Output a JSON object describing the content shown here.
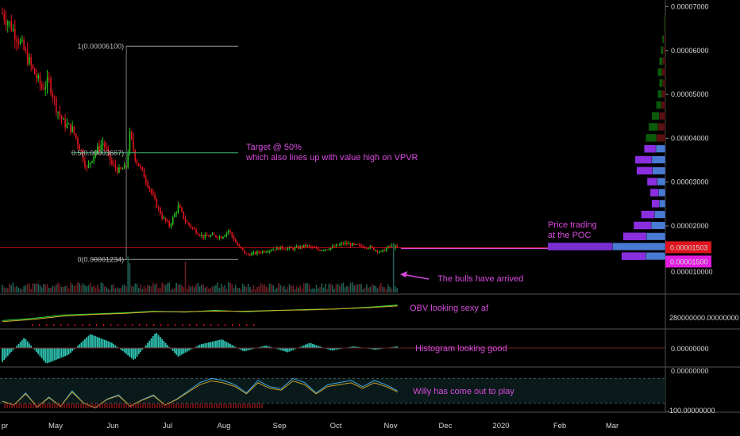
{
  "chart_data": [
    {
      "type": "candlestick",
      "panel": "price",
      "title": "",
      "x_ticks": [
        "pr",
        "May",
        "Jun",
        "Jul",
        "Aug",
        "Sep",
        "Oct",
        "Nov",
        "Dec",
        "2020",
        "Feb",
        "Mar"
      ],
      "y_ticks": [
        "0.00007000",
        "0.00006000",
        "0.00005000",
        "0.00004000",
        "0.00003000",
        "0.00002000"
      ],
      "ylim": [
        9.5e-06,
        7.1e-05
      ],
      "close_path": [
        [
          "2019-04-01",
          6.85e-05
        ],
        [
          "2019-04-06",
          6.55e-05
        ],
        [
          "2019-04-12",
          6.1e-05
        ],
        [
          "2019-04-18",
          5.55e-05
        ],
        [
          "2019-04-23",
          5.15e-05
        ],
        [
          "2019-04-27",
          5.3e-05
        ],
        [
          "2019-05-01",
          4.7e-05
        ],
        [
          "2019-05-05",
          4.35e-05
        ],
        [
          "2019-05-10",
          4.2e-05
        ],
        [
          "2019-05-14",
          3.8e-05
        ],
        [
          "2019-05-18",
          3.3e-05
        ],
        [
          "2019-05-22",
          3.65e-05
        ],
        [
          "2019-05-27",
          3.9e-05
        ],
        [
          "2019-06-01",
          3.4e-05
        ],
        [
          "2019-06-05",
          3.25e-05
        ],
        [
          "2019-06-09",
          3.35e-05
        ],
        [
          "2019-06-11",
          4.1e-05
        ],
        [
          "2019-06-14",
          3.55e-05
        ],
        [
          "2019-06-20",
          3.05e-05
        ],
        [
          "2019-06-25",
          2.55e-05
        ],
        [
          "2019-06-29",
          2.2e-05
        ],
        [
          "2019-07-03",
          2e-05
        ],
        [
          "2019-07-08",
          2.45e-05
        ],
        [
          "2019-07-12",
          2.1e-05
        ],
        [
          "2019-07-17",
          1.9e-05
        ],
        [
          "2019-07-22",
          1.75e-05
        ],
        [
          "2019-07-27",
          1.78e-05
        ],
        [
          "2019-08-01",
          1.75e-05
        ],
        [
          "2019-08-05",
          1.9e-05
        ],
        [
          "2019-08-10",
          1.55e-05
        ],
        [
          "2019-08-15",
          1.34e-05
        ],
        [
          "2019-08-20",
          1.38e-05
        ],
        [
          "2019-08-27",
          1.45e-05
        ],
        [
          "2019-09-03",
          1.5e-05
        ],
        [
          "2019-09-10",
          1.48e-05
        ],
        [
          "2019-09-17",
          1.55e-05
        ],
        [
          "2019-09-24",
          1.45e-05
        ],
        [
          "2019-10-01",
          1.5e-05
        ],
        [
          "2019-10-08",
          1.6e-05
        ],
        [
          "2019-10-15",
          1.55e-05
        ],
        [
          "2019-10-22",
          1.52e-05
        ],
        [
          "2019-10-29",
          1.4e-05
        ],
        [
          "2019-11-03",
          1.55e-05
        ],
        [
          "2019-11-07",
          1.5e-05
        ]
      ],
      "volume_profile_levels": [
        {
          "price": 6.7e-05,
          "size": 1
        },
        {
          "price": 6.5e-05,
          "size": 1
        },
        {
          "price": 6.25e-05,
          "size": 2
        },
        {
          "price": 6e-05,
          "size": 3
        },
        {
          "price": 5.75e-05,
          "size": 4
        },
        {
          "price": 5.5e-05,
          "size": 5
        },
        {
          "price": 5.25e-05,
          "size": 4
        },
        {
          "price": 5e-05,
          "size": 5
        },
        {
          "price": 4.75e-05,
          "size": 6
        },
        {
          "price": 4.5e-05,
          "size": 9
        },
        {
          "price": 4.25e-05,
          "size": 11
        },
        {
          "price": 4e-05,
          "size": 13
        },
        {
          "price": 3.75e-05,
          "size": 14
        },
        {
          "price": 3.5e-05,
          "size": 20
        },
        {
          "price": 3.25e-05,
          "size": 19
        },
        {
          "price": 3e-05,
          "size": 12
        },
        {
          "price": 2.75e-05,
          "size": 10
        },
        {
          "price": 2.5e-05,
          "size": 9
        },
        {
          "price": 2.25e-05,
          "size": 16
        },
        {
          "price": 2e-05,
          "size": 21
        },
        {
          "price": 1.75e-05,
          "size": 28
        },
        {
          "price": 1.52e-05,
          "size": 78
        },
        {
          "price": 1.3e-05,
          "size": 29
        }
      ],
      "fib_levels": [
        {
          "label": "1(0.00006100)",
          "price": 6.1e-05
        },
        {
          "label": "0.5(0.00003667)",
          "price": 3.667e-05
        },
        {
          "label": "0(0.00001234)",
          "price": 1.234e-05
        }
      ],
      "price_badges": [
        {
          "text": "0.00001503",
          "price": 1.503e-05,
          "color": "#e0141e"
        },
        {
          "text": "0.00001500",
          "price": 1.5e-05,
          "color": "#e21ce0"
        }
      ],
      "partial_tick": "0.000010000",
      "annotations": [
        {
          "id": "target",
          "lines": [
            "Target @ 50%",
            "which also lines up with value high on VPVR"
          ]
        },
        {
          "id": "price_trading",
          "lines": [
            "Price trading",
            "at the POC"
          ]
        },
        {
          "id": "bulls",
          "lines": [
            "The bulls have arrived"
          ]
        }
      ]
    },
    {
      "type": "bar",
      "panel": "volume",
      "title": "",
      "note": "volume spikes",
      "spike_dates": [
        "2019-06-10",
        "2019-06-11",
        "2019-07-12",
        "2019-11-05"
      ]
    },
    {
      "type": "line",
      "panel": "OBV",
      "title": "",
      "y_tick": "280000000.00000000",
      "annotation": "OBV looking sexy af",
      "series": [
        {
          "values": [
            0.2,
            0.3,
            0.45,
            0.5,
            0.55,
            0.62,
            0.58,
            0.66,
            0.6,
            0.65,
            0.7,
            0.72,
            0.8,
            0.9
          ]
        },
        {
          "values": [
            0.15,
            0.25,
            0.4,
            0.48,
            0.52,
            0.6,
            0.6,
            0.63,
            0.62,
            0.66,
            0.68,
            0.72,
            0.78,
            0.86
          ]
        }
      ]
    },
    {
      "type": "bar",
      "panel": "MACD histogram",
      "title": "",
      "y_tick": "0.00000000",
      "annotation": "Histogram looking good",
      "values": [
        -0.8,
        0.6,
        -0.9,
        -0.4,
        0.8,
        0.3,
        -0.7,
        0.9,
        -0.5,
        0.2,
        0.5,
        -0.2,
        0.15,
        -0.25,
        0.3,
        -0.15,
        0.1,
        -0.1,
        0.1
      ]
    },
    {
      "type": "line",
      "panel": "Williams %R",
      "title": "",
      "y_ticks": [
        "0.00000000",
        "-100.00000000"
      ],
      "ylim": [
        -100,
        0
      ],
      "annotation": "Willy has come out to play",
      "values": [
        -75,
        -85,
        -55,
        -90,
        -65,
        -88,
        -50,
        -80,
        -92,
        -70,
        -60,
        -88,
        -72,
        -60,
        -85,
        -70,
        -50,
        -30,
        -20,
        -25,
        -35,
        -55,
        -25,
        -40,
        -45,
        -20,
        -30,
        -55,
        -35,
        -30,
        -25,
        -40,
        -25,
        -35,
        -50
      ]
    }
  ],
  "colors": {
    "background": "#000000",
    "up_candle": "#26c11c",
    "down_candle": "#e0141e",
    "histogram": "#2fc4b2",
    "annotation": "#d94adf",
    "vpvr_poc": "#7a2fd0",
    "vpvr_blue": "#4a7bd4",
    "vpvr_green": "#0b5a0b",
    "vpvr_red": "#5a1010"
  }
}
